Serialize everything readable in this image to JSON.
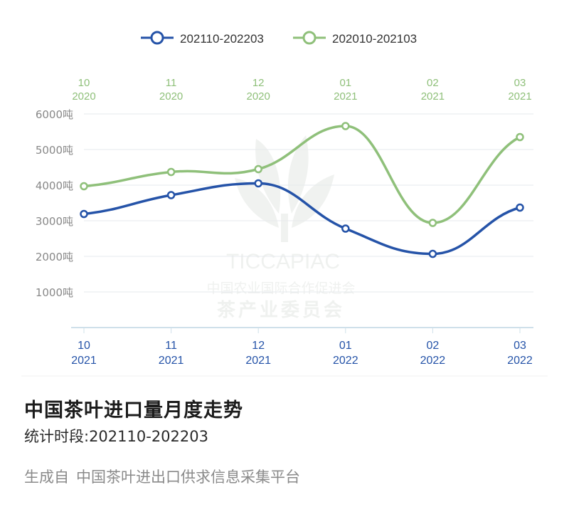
{
  "chart_data": {
    "type": "line",
    "series": [
      {
        "name": "202110-202203",
        "color": "#2553a8",
        "x": [
          [
            "10",
            "2021"
          ],
          [
            "11",
            "2021"
          ],
          [
            "12",
            "2021"
          ],
          [
            "01",
            "2022"
          ],
          [
            "02",
            "2022"
          ],
          [
            "03",
            "2022"
          ]
        ],
        "values": [
          3190,
          3720,
          4050,
          2780,
          2070,
          3370
        ]
      },
      {
        "name": "202010-202103",
        "color": "#8fc07a",
        "x": [
          [
            "10",
            "2020"
          ],
          [
            "11",
            "2020"
          ],
          [
            "12",
            "2020"
          ],
          [
            "01",
            "2021"
          ],
          [
            "02",
            "2021"
          ],
          [
            "03",
            "2021"
          ]
        ],
        "values": [
          3970,
          4370,
          4450,
          5660,
          2940,
          5350
        ]
      }
    ],
    "y_ticks": [
      "1000吨",
      "2000吨",
      "3000吨",
      "4000吨",
      "5000吨",
      "6000吨"
    ],
    "y_tick_values": [
      1000,
      2000,
      3000,
      4000,
      5000,
      6000
    ],
    "ylim": [
      0,
      6000
    ],
    "grid": true,
    "legend_position": "top",
    "watermark": {
      "line1": "TICCAPIAC",
      "line2": "中国农业国际合作促进会",
      "line3": "茶产业委员会"
    }
  },
  "footer": {
    "title": "中国茶叶进口量月度走势",
    "period": "统计时段:202110-202203",
    "source_prefix": "生成自",
    "source_name": "中国茶叶进出口供求信息采集平台"
  }
}
